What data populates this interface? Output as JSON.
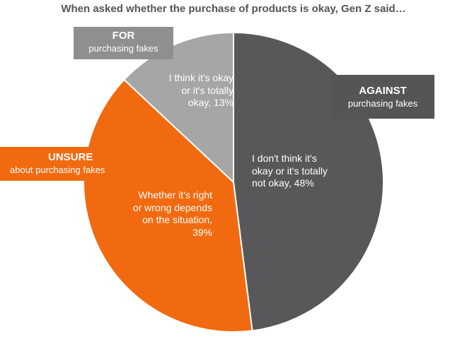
{
  "chart_data": {
    "type": "pie",
    "title": "When asked whether the purchase of products is okay, Gen Z said…",
    "slices": [
      {
        "key": "against",
        "value": 48,
        "color": "#58585a",
        "category_head": "AGAINST",
        "category_sub": "purchasing fakes",
        "label_lines": [
          "I don't think it's",
          "okay or it's totally",
          "not okay, 48%"
        ]
      },
      {
        "key": "unsure",
        "value": 39,
        "color": "#f26a10",
        "category_head": "UNSURE",
        "category_sub": "about purchasing fakes",
        "label_lines": [
          "Whether it's right",
          "or wrong depends",
          "on the situation,",
          "39%"
        ]
      },
      {
        "key": "for",
        "value": 13,
        "color": "#a6a6a6",
        "category_head": "FOR",
        "category_sub": "purchasing fakes",
        "label_lines": [
          "I think it's okay",
          "or it's totally",
          "okay, 13%"
        ]
      }
    ]
  }
}
